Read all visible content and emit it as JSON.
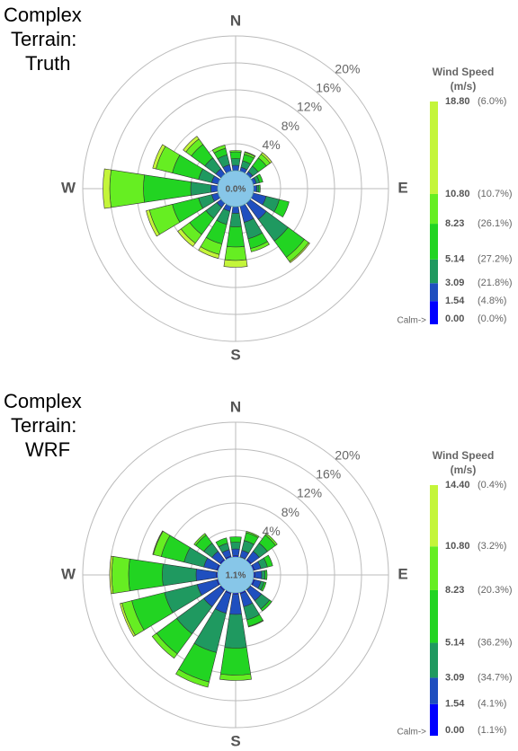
{
  "chart_data": [
    {
      "type": "windrose",
      "title": [
        "Complex",
        "Terrain:",
        "Truth"
      ],
      "categories": [
        "N",
        null,
        null,
        null,
        "E",
        null,
        null,
        null,
        "S",
        null,
        null,
        null,
        "W",
        null,
        null,
        null
      ],
      "rlim": [
        0,
        20
      ],
      "rticks": [
        {
          "value": 4,
          "label": "4%"
        },
        {
          "value": 8,
          "label": "8%"
        },
        {
          "value": 12,
          "label": "12%"
        },
        {
          "value": 16,
          "label": "16%"
        },
        {
          "value": 20,
          "label": "20%"
        }
      ],
      "calm": {
        "value": 0.0,
        "label": "0.0%"
      },
      "legend_title": [
        "Wind Speed",
        "(m/s)"
      ],
      "calm_label": "Calm->",
      "legend_edges": [
        {
          "value": 0,
          "label": "0.00"
        },
        {
          "value": 1.54,
          "label": "1.54"
        },
        {
          "value": 3.09,
          "label": "3.09"
        },
        {
          "value": 5.14,
          "label": "5.14"
        },
        {
          "value": 8.23,
          "label": "8.23"
        },
        {
          "value": 10.8,
          "label": "10.80"
        },
        {
          "value": 18.8,
          "label": "18.80"
        }
      ],
      "legend_percents": [
        {
          "value": 0.0,
          "label": "(0.0%)"
        },
        {
          "value": 4.8,
          "label": "(4.8%)"
        },
        {
          "value": 21.8,
          "label": "(21.8%)"
        },
        {
          "value": 27.2,
          "label": "(27.2%)"
        },
        {
          "value": 26.1,
          "label": "(26.1%)"
        },
        {
          "value": 10.7,
          "label": "(10.7%)"
        },
        {
          "value": 6.0,
          "label": "(6.0%)"
        }
      ],
      "series": [
        {
          "color": "#0000ff",
          "values": [
            0,
            0,
            0,
            0,
            0,
            0,
            0,
            0,
            0,
            0,
            0,
            0,
            0,
            0,
            0,
            0
          ]
        },
        {
          "color": "#1f4fbf",
          "values": [
            0.8,
            0.6,
            0.5,
            0.5,
            0.5,
            2,
            3,
            2.5,
            1,
            0.8,
            0.8,
            1,
            1,
            1,
            1,
            1
          ]
        },
        {
          "color": "#1f9960",
          "values": [
            1,
            1,
            1,
            0.5,
            0.3,
            2,
            4,
            2.5,
            2,
            2,
            2,
            2,
            3,
            2,
            2,
            1.5
          ]
        },
        {
          "color": "#22d422",
          "values": [
            1,
            1,
            1.5,
            0.5,
            0.2,
            1.5,
            3,
            1.5,
            3,
            3,
            3,
            4,
            7,
            4,
            2.5,
            1
          ]
        },
        {
          "color": "#66ee22",
          "values": [
            0.2,
            0.3,
            0.7,
            0,
            0,
            0,
            0.8,
            0.5,
            2,
            1.6,
            1.6,
            3.5,
            5,
            2.5,
            1,
            0.5
          ]
        },
        {
          "color": "#c4f53a",
          "values": [
            0,
            0.1,
            0.3,
            0,
            0,
            0,
            0.2,
            0,
            1,
            0.6,
            0.6,
            0.5,
            1,
            0.5,
            0.5,
            0
          ]
        }
      ]
    },
    {
      "type": "windrose",
      "title": [
        "Complex",
        "Terrain:",
        "WRF"
      ],
      "categories": [
        "N",
        null,
        null,
        null,
        "E",
        null,
        null,
        null,
        "S",
        null,
        null,
        null,
        "W",
        null,
        null,
        null
      ],
      "rlim": [
        0,
        20
      ],
      "rticks": [
        {
          "value": 4,
          "label": "4%"
        },
        {
          "value": 8,
          "label": "8%"
        },
        {
          "value": 12,
          "label": "12%"
        },
        {
          "value": 16,
          "label": "16%"
        },
        {
          "value": 20,
          "label": "20%"
        }
      ],
      "calm": {
        "value": 1.1,
        "label": "1.1%"
      },
      "legend_title": [
        "Wind Speed",
        "(m/s)"
      ],
      "calm_label": "Calm->",
      "legend_edges": [
        {
          "value": 0,
          "label": "0.00"
        },
        {
          "value": 1.54,
          "label": "1.54"
        },
        {
          "value": 3.09,
          "label": "3.09"
        },
        {
          "value": 5.14,
          "label": "5.14"
        },
        {
          "value": 8.23,
          "label": "8.23"
        },
        {
          "value": 10.8,
          "label": "10.80"
        },
        {
          "value": 14.4,
          "label": "14.40"
        }
      ],
      "legend_percents": [
        {
          "value": 1.1,
          "label": "(1.1%)"
        },
        {
          "value": 4.1,
          "label": "(4.1%)"
        },
        {
          "value": 34.7,
          "label": "(34.7%)"
        },
        {
          "value": 36.2,
          "label": "(36.2%)"
        },
        {
          "value": 20.3,
          "label": "(20.3%)"
        },
        {
          "value": 3.2,
          "label": "(3.2%)"
        },
        {
          "value": 0.4,
          "label": "(0.4%)"
        }
      ],
      "series": [
        {
          "color": "#0000ff",
          "values": [
            0.2,
            0.1,
            0.2,
            0.2,
            0.2,
            0.2,
            0.1,
            0.2,
            0.2,
            0.2,
            0.2,
            0.2,
            0.2,
            0.2,
            0.2,
            0.2
          ]
        },
        {
          "color": "#1f4fbf",
          "values": [
            1,
            1,
            1.5,
            1,
            1,
            1,
            2,
            2,
            3,
            3,
            3,
            3,
            3,
            2,
            1.5,
            1
          ]
        },
        {
          "color": "#1f9960",
          "values": [
            1,
            1.5,
            1.5,
            1,
            0.5,
            0.5,
            1.5,
            2,
            5,
            6,
            5,
            5,
            5,
            3,
            1.5,
            1
          ]
        },
        {
          "color": "#22d422",
          "values": [
            0.8,
            1.2,
            1.5,
            0.8,
            0.3,
            0.3,
            0.4,
            1,
            4,
            4.5,
            3.7,
            5,
            5,
            3.5,
            1.5,
            0.8
          ]
        },
        {
          "color": "#66ee22",
          "values": [
            0,
            0.2,
            0.3,
            0,
            0,
            0,
            0,
            0.1,
            0.8,
            0.8,
            0.8,
            1.5,
            2.5,
            1.2,
            0.3,
            0
          ]
        },
        {
          "color": "#c4f53a",
          "values": [
            0,
            0,
            0,
            0,
            0,
            0,
            0,
            0,
            0,
            0,
            0,
            0.3,
            0.3,
            0.1,
            0,
            0
          ]
        }
      ]
    }
  ]
}
